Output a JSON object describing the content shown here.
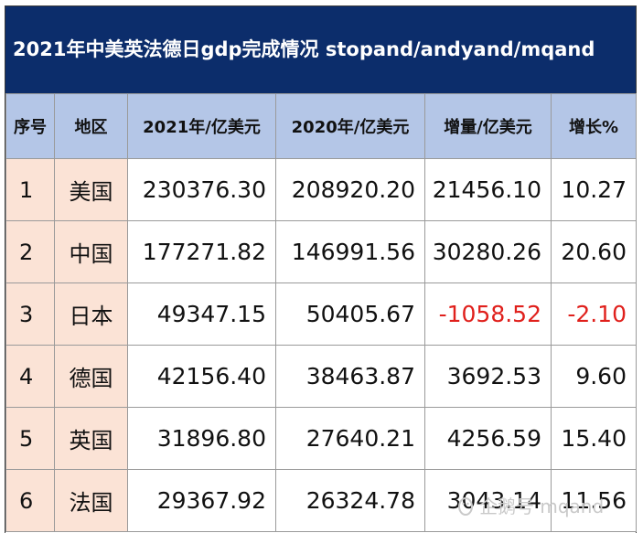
{
  "title": "2021年中美英法德日gdp完成情况 stopand/andyand/mqand",
  "headers": [
    "序号",
    "地区",
    "2021年/亿美元",
    "2020年/亿美元",
    "增量/亿美元",
    "增长%"
  ],
  "rows": [
    {
      "idx": "1",
      "region": "美国",
      "y2021": "230376.30",
      "y2020": "208920.20",
      "delta": "21456.10",
      "growth": "10.27",
      "negative": false
    },
    {
      "idx": "2",
      "region": "中国",
      "y2021": "177271.82",
      "y2020": "146991.56",
      "delta": "30280.26",
      "growth": "20.60",
      "negative": false
    },
    {
      "idx": "3",
      "region": "日本",
      "y2021": "49347.15",
      "y2020": "50405.67",
      "delta": "-1058.52",
      "growth": "-2.10",
      "negative": true
    },
    {
      "idx": "4",
      "region": "德国",
      "y2021": "42156.40",
      "y2020": "38463.87",
      "delta": "3692.53",
      "growth": "9.60",
      "negative": false
    },
    {
      "idx": "5",
      "region": "英国",
      "y2021": "31896.80",
      "y2020": "27640.21",
      "delta": "4256.59",
      "growth": "15.40",
      "negative": false
    },
    {
      "idx": "6",
      "region": "法国",
      "y2021": "29367.92",
      "y2020": "26324.78",
      "delta": "3043.14",
      "growth": "11.56",
      "negative": false
    }
  ],
  "watermark": "企鹅号 mqand",
  "colors": {
    "title_bg": "#0c2d6b",
    "header_bg": "#b4c6e7",
    "label_bg": "#fbe3d6",
    "negative": "#e0201c"
  }
}
